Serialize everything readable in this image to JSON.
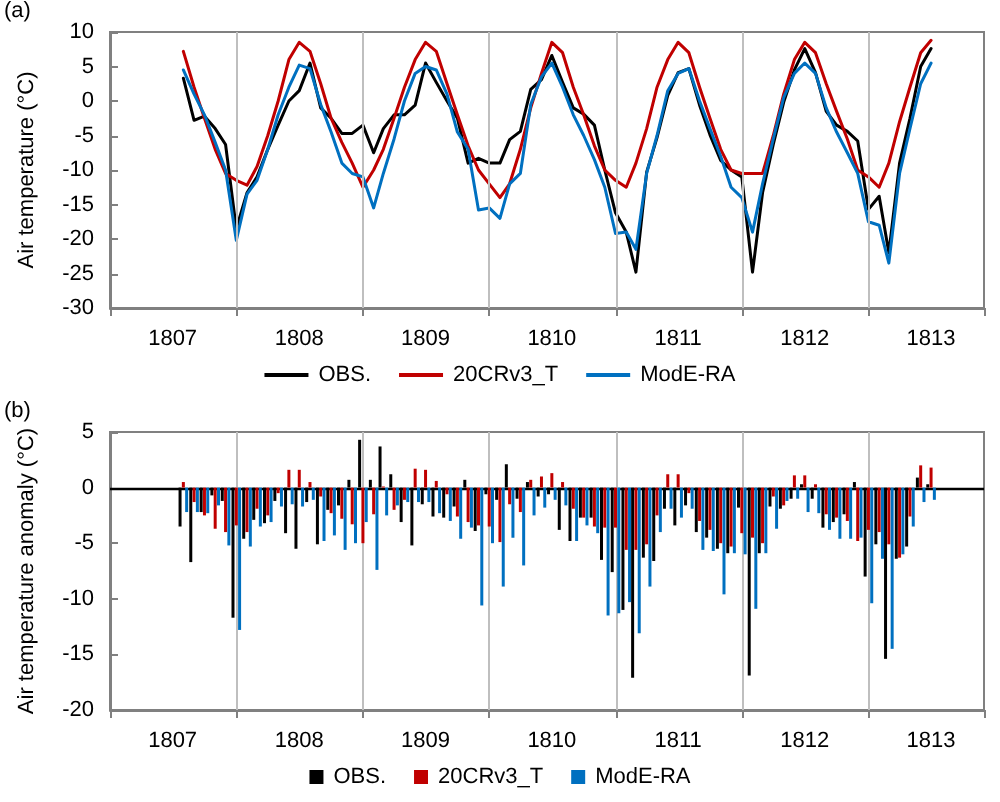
{
  "chart_data": [
    {
      "type": "line",
      "annotations": [
        "(a)"
      ],
      "ylabel": "Air temperature (°C)",
      "x": [
        "1807-08",
        "1807-09",
        "1807-10",
        "1807-11",
        "1807-12",
        "1808-01",
        "1808-02",
        "1808-03",
        "1808-04",
        "1808-05",
        "1808-06",
        "1808-07",
        "1808-08",
        "1808-09",
        "1808-10",
        "1808-11",
        "1808-12",
        "1809-01",
        "1809-02",
        "1809-03",
        "1809-04",
        "1809-05",
        "1809-06",
        "1809-07",
        "1809-08",
        "1809-09",
        "1809-10",
        "1809-11",
        "1809-12",
        "1810-01",
        "1810-02",
        "1810-03",
        "1810-04",
        "1810-05",
        "1810-06",
        "1810-07",
        "1810-08",
        "1810-09",
        "1810-10",
        "1810-11",
        "1810-12",
        "1811-01",
        "1811-02",
        "1811-03",
        "1811-04",
        "1811-05",
        "1811-06",
        "1811-07",
        "1811-08",
        "1811-09",
        "1811-10",
        "1811-11",
        "1811-12",
        "1812-01",
        "1812-02",
        "1812-03",
        "1812-04",
        "1812-05",
        "1812-06",
        "1812-07",
        "1812-08",
        "1812-09",
        "1812-10",
        "1812-11",
        "1812-12",
        "1813-01",
        "1813-02",
        "1813-03",
        "1813-04",
        "1813-05",
        "1813-06",
        "1813-07"
      ],
      "series": [
        {
          "name": "OBS.",
          "color": "#000000",
          "values": [
            3.3,
            -2.8,
            -2.2,
            -4,
            -6.3,
            -18.5,
            -13.3,
            -11,
            -7,
            -3.5,
            0,
            1.5,
            5.5,
            -1,
            -2.5,
            -4.7,
            -4.7,
            -3.5,
            -7.5,
            -4,
            -2,
            -2,
            -0.6,
            5.5,
            2.7,
            0,
            -2.5,
            -9,
            -8.3,
            -9,
            -9,
            -5.6,
            -4.4,
            1.7,
            3.1,
            6.6,
            2.7,
            -1,
            -1.9,
            -3.5,
            -10,
            -16.2,
            -19,
            -24.8,
            -10.3,
            -5.3,
            0.8,
            4.1,
            4.7,
            -0.6,
            -4.9,
            -8.6,
            -10,
            -11,
            -24.8,
            -13.3,
            -6.3,
            -0.2,
            4.5,
            7.6,
            4.1,
            -1.5,
            -3.5,
            -4.4,
            -5.8,
            -15.7,
            -13.8,
            -22,
            -9,
            -2.5,
            5,
            7.6
          ]
        },
        {
          "name": "20CRv3_T",
          "color": "#c00000",
          "values": [
            7.2,
            2,
            -2.5,
            -7,
            -10.5,
            -11.5,
            -12.2,
            -9.5,
            -5,
            0,
            6,
            8.5,
            7.2,
            2.5,
            -2.5,
            -6,
            -9,
            -12.5,
            -10,
            -7,
            -2.5,
            2,
            6,
            8.5,
            7.2,
            2.5,
            -2,
            -6.5,
            -10,
            -12,
            -14,
            -12,
            -7,
            -1,
            4,
            8.5,
            7,
            2,
            -2,
            -6.5,
            -10,
            -11.5,
            -12.5,
            -9,
            -4,
            2,
            6,
            8.5,
            7,
            2,
            -2.5,
            -7,
            -10,
            -10.5,
            -10.5,
            -10.5,
            -5,
            1,
            6,
            8.5,
            7,
            2.5,
            -1.5,
            -5.5,
            -10,
            -11,
            -12.5,
            -9,
            -3,
            2,
            7,
            8.8
          ]
        },
        {
          "name": "ModE-RA",
          "color": "#0070c0",
          "values": [
            4.5,
            1,
            -2,
            -6,
            -10,
            -20.2,
            -13.5,
            -11.5,
            -7,
            -2,
            2,
            5.2,
            4.7,
            -0.5,
            -4.5,
            -9,
            -10.5,
            -11,
            -15.5,
            -10.5,
            -5.5,
            0,
            4,
            5,
            4.5,
            1,
            -4.5,
            -7,
            -15.8,
            -15.5,
            -17,
            -12,
            -10.5,
            -0.5,
            3.5,
            5.5,
            2,
            -2,
            -5,
            -8.5,
            -12.5,
            -19.2,
            -19,
            -21.5,
            -10.5,
            -5,
            1.5,
            4,
            4.7,
            0,
            -4,
            -8,
            -12.5,
            -14,
            -19,
            -12,
            -5.5,
            0.5,
            4,
            5.5,
            4,
            -1,
            -4.5,
            -7.5,
            -10.5,
            -17.5,
            -18,
            -23.5,
            -10.5,
            -4,
            2.5,
            5.5
          ]
        }
      ],
      "xlim": [
        "1807-01",
        "1813-12"
      ],
      "xticks": [
        {
          "value": "1807-01",
          "label": null
        },
        {
          "value": "1807-07",
          "label": "1807"
        },
        {
          "value": "1808-01",
          "label": null
        },
        {
          "value": "1808-07",
          "label": "1808"
        },
        {
          "value": "1809-01",
          "label": null
        },
        {
          "value": "1809-07",
          "label": "1809"
        },
        {
          "value": "1810-01",
          "label": null
        },
        {
          "value": "1810-07",
          "label": "1810"
        },
        {
          "value": "1811-01",
          "label": null
        },
        {
          "value": "1811-07",
          "label": "1811"
        },
        {
          "value": "1812-01",
          "label": null
        },
        {
          "value": "1812-07",
          "label": "1812"
        },
        {
          "value": "1813-01",
          "label": null
        },
        {
          "value": "1813-07",
          "label": "1813"
        },
        {
          "value": "1813-12",
          "label": null
        }
      ],
      "ylim": [
        -30,
        10
      ],
      "yticks": [
        -30,
        -25,
        -20,
        -15,
        -10,
        -5,
        0,
        5,
        10
      ],
      "ref_lines": [
        {
          "axis": "x",
          "value": "1808-01",
          "color": "#bfbfbf"
        },
        {
          "axis": "x",
          "value": "1809-01",
          "color": "#bfbfbf"
        },
        {
          "axis": "x",
          "value": "1810-01",
          "color": "#bfbfbf"
        },
        {
          "axis": "x",
          "value": "1811-01",
          "color": "#bfbfbf"
        },
        {
          "axis": "x",
          "value": "1812-01",
          "color": "#bfbfbf"
        },
        {
          "axis": "x",
          "value": "1813-01",
          "color": "#bfbfbf"
        }
      ],
      "legend": "bottom",
      "line_style": "solid",
      "marker": "none"
    },
    {
      "type": "bar",
      "annotations": [
        "(b)"
      ],
      "ylabel": "Air temperature anomaly (°C)",
      "x": [
        "1807-08",
        "1807-09",
        "1807-10",
        "1807-11",
        "1807-12",
        "1808-01",
        "1808-02",
        "1808-03",
        "1808-04",
        "1808-05",
        "1808-06",
        "1808-07",
        "1808-08",
        "1808-09",
        "1808-10",
        "1808-11",
        "1808-12",
        "1809-01",
        "1809-02",
        "1809-03",
        "1809-04",
        "1809-05",
        "1809-06",
        "1809-07",
        "1809-08",
        "1809-09",
        "1809-10",
        "1809-11",
        "1809-12",
        "1810-01",
        "1810-02",
        "1810-03",
        "1810-04",
        "1810-05",
        "1810-06",
        "1810-07",
        "1810-08",
        "1810-09",
        "1810-10",
        "1810-11",
        "1810-12",
        "1811-01",
        "1811-02",
        "1811-03",
        "1811-04",
        "1811-05",
        "1811-06",
        "1811-07",
        "1811-08",
        "1811-09",
        "1811-10",
        "1811-11",
        "1811-12",
        "1812-01",
        "1812-02",
        "1812-03",
        "1812-04",
        "1812-05",
        "1812-06",
        "1812-07",
        "1812-08",
        "1812-09",
        "1812-10",
        "1812-11",
        "1812-12",
        "1813-01",
        "1813-02",
        "1813-03",
        "1813-04",
        "1813-05",
        "1813-06",
        "1813-07"
      ],
      "series": [
        {
          "name": "OBS.",
          "color": "#000000",
          "values": [
            -3.5,
            -6.7,
            -2.2,
            -0.7,
            -1.2,
            -11.7,
            -4.6,
            -2.9,
            -3.2,
            -1.2,
            -4.1,
            -5.5,
            -1.3,
            -5.1,
            -2,
            -1.6,
            0.7,
            4.3,
            0.7,
            3.7,
            1.2,
            -3.1,
            -5.2,
            -1.5,
            -2.6,
            -2.7,
            -1.7,
            0.7,
            -3.9,
            -0.6,
            -1.1,
            2.1,
            -1,
            0.5,
            -0.8,
            -0.6,
            -3.8,
            -4.8,
            -2.7,
            -2.7,
            -6.5,
            -7.6,
            -11,
            -17.1,
            -6.3,
            -6.6,
            -1.9,
            -3.4,
            -1.6,
            -4,
            -4.5,
            -5.5,
            -5.9,
            -1.8,
            -16.9,
            -5.9,
            -1.7,
            -1.9,
            -1,
            0.3,
            -1,
            -3.6,
            -3.1,
            -2.4,
            0.5,
            -8,
            -5.1,
            -15.4,
            -6.4,
            -5.3,
            0.9,
            0.3
          ]
        },
        {
          "name": "20CRv3_T",
          "color": "#c00000",
          "values": [
            0.5,
            -1.3,
            -2.5,
            -3.7,
            -4,
            -3.4,
            -4,
            -1.9,
            -2.5,
            -0.5,
            1.6,
            1.6,
            0.5,
            -0.8,
            -2.3,
            -2.8,
            -3.3,
            -5,
            -2.4,
            0.1,
            -2,
            -1.1,
            1.7,
            1.6,
            0.6,
            -0.6,
            -2.6,
            -3.1,
            -3.4,
            -3.5,
            -4.9,
            -1.5,
            -2.2,
            0.7,
            1,
            1.3,
            0.5,
            -1.9,
            -2.7,
            -3.5,
            -3.6,
            -3.6,
            -5.6,
            -5.6,
            -5.1,
            -2.5,
            1.2,
            1.2,
            -0.5,
            -3,
            -3.8,
            -5,
            -5.3,
            -4.1,
            -4.5,
            -5,
            -0.8,
            -1.6,
            1.1,
            1.1,
            0.3,
            -2.4,
            -2.7,
            -3,
            -4.8,
            -3.8,
            -4,
            -5.1,
            -6.3,
            -2.6,
            2,
            1.8
          ]
        },
        {
          "name": "ModE-RA",
          "color": "#0070c0",
          "values": [
            -2.2,
            -2.2,
            -2.3,
            -1.6,
            -5.2,
            -12.8,
            -5.3,
            -3.5,
            -3.1,
            -1.7,
            -1.5,
            -1.7,
            -1.1,
            -4.8,
            -4.3,
            -5.6,
            -5,
            -3.1,
            -7.4,
            -2.5,
            -1.6,
            -1.3,
            -1.3,
            -1.3,
            -2.3,
            -3,
            -4.6,
            -3.6,
            -10.6,
            -5,
            -8.9,
            -4.5,
            -7,
            -2.5,
            -1.8,
            -1.1,
            -1.6,
            -4.8,
            -3.4,
            -4.1,
            -11.5,
            -11.3,
            -10.3,
            -13.1,
            -8.9,
            -4,
            -1.9,
            -2.7,
            -1.9,
            -5.6,
            -5.7,
            -9.6,
            -5.9,
            -6,
            -10.9,
            -5.9,
            -3.7,
            -1.2,
            -1,
            -2.2,
            -2.3,
            -3.8,
            -4.6,
            -4.6,
            -4.5,
            -10.4,
            -6.4,
            -14.5,
            -6,
            -3.5,
            -1.3,
            -1.1
          ]
        }
      ],
      "xlim": [
        "1807-01",
        "1813-12"
      ],
      "xticks": [
        {
          "value": "1807-01",
          "label": null
        },
        {
          "value": "1807-07",
          "label": "1807"
        },
        {
          "value": "1808-01",
          "label": null
        },
        {
          "value": "1808-07",
          "label": "1808"
        },
        {
          "value": "1809-01",
          "label": null
        },
        {
          "value": "1809-07",
          "label": "1809"
        },
        {
          "value": "1810-01",
          "label": null
        },
        {
          "value": "1810-07",
          "label": "1810"
        },
        {
          "value": "1811-01",
          "label": null
        },
        {
          "value": "1811-07",
          "label": "1811"
        },
        {
          "value": "1812-01",
          "label": null
        },
        {
          "value": "1812-07",
          "label": "1812"
        },
        {
          "value": "1813-01",
          "label": null
        },
        {
          "value": "1813-07",
          "label": "1813"
        },
        {
          "value": "1813-12",
          "label": null
        }
      ],
      "ylim": [
        -20,
        5
      ],
      "yticks": [
        -20,
        -15,
        -10,
        -5,
        0,
        5
      ],
      "ref_lines": [
        {
          "axis": "y",
          "value": 0,
          "color": "#000000"
        },
        {
          "axis": "x",
          "value": "1808-01",
          "color": "#bfbfbf"
        },
        {
          "axis": "x",
          "value": "1809-01",
          "color": "#bfbfbf"
        },
        {
          "axis": "x",
          "value": "1810-01",
          "color": "#bfbfbf"
        },
        {
          "axis": "x",
          "value": "1811-01",
          "color": "#bfbfbf"
        },
        {
          "axis": "x",
          "value": "1812-01",
          "color": "#bfbfbf"
        },
        {
          "axis": "x",
          "value": "1813-01",
          "color": "#bfbfbf"
        }
      ],
      "legend": "bottom"
    }
  ]
}
